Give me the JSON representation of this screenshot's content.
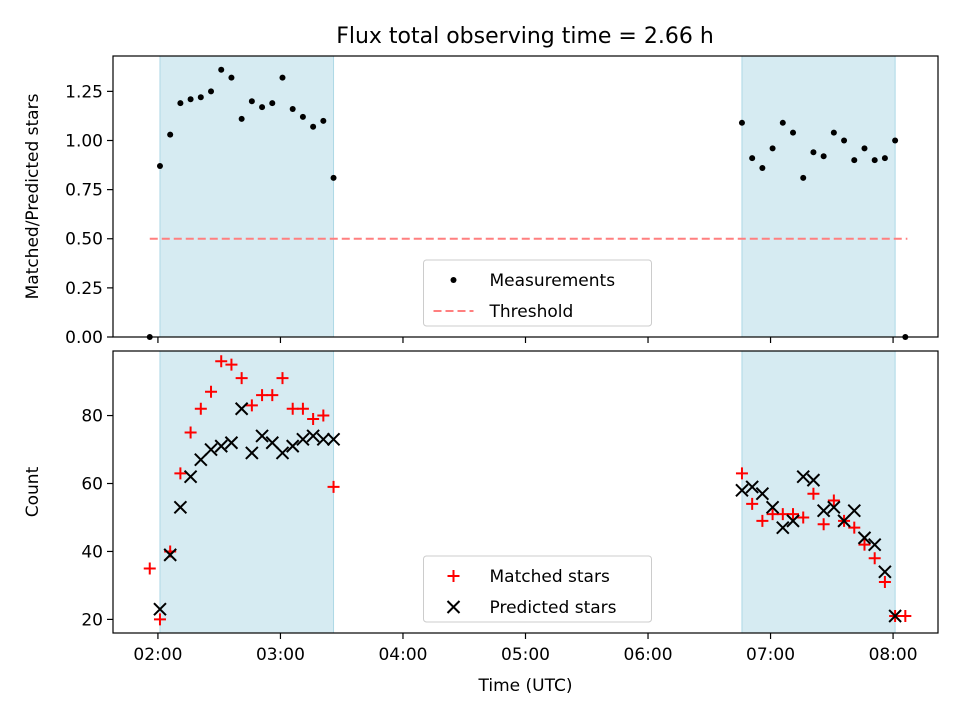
{
  "title": "Flux total observing time = 2.66 h",
  "colors": {
    "shade": "#add8e6",
    "measurement": "#000000",
    "threshold": "#ff7f7f",
    "matched": "#ff0000",
    "predicted": "#000000"
  },
  "chart_data": [
    {
      "type": "scatter",
      "ylabel": "Matched/Predicted stars",
      "xlim": [
        "01:38",
        "08:22"
      ],
      "ylim": [
        0,
        1.43
      ],
      "y_ticks": [
        "0.00",
        "0.25",
        "0.50",
        "0.75",
        "1.00",
        "1.25"
      ],
      "shaded_intervals": [
        [
          "02:01",
          "03:26"
        ],
        [
          "06:46",
          "08:01"
        ]
      ],
      "legend": {
        "location": "lower center",
        "entries": [
          "Measurements",
          "Threshold"
        ]
      },
      "threshold": {
        "name": "Threshold",
        "value": 0.5,
        "x_range": [
          "01:56",
          "08:07"
        ]
      },
      "series": [
        {
          "name": "Measurements",
          "marker": "dot",
          "points": [
            [
              "01:56",
              0.0
            ],
            [
              "02:01",
              0.87
            ],
            [
              "02:06",
              1.03
            ],
            [
              "02:11",
              1.19
            ],
            [
              "02:16",
              1.21
            ],
            [
              "02:21",
              1.22
            ],
            [
              "02:26",
              1.25
            ],
            [
              "02:31",
              1.36
            ],
            [
              "02:36",
              1.32
            ],
            [
              "02:41",
              1.11
            ],
            [
              "02:46",
              1.2
            ],
            [
              "02:51",
              1.17
            ],
            [
              "02:56",
              1.19
            ],
            [
              "03:01",
              1.32
            ],
            [
              "03:06",
              1.16
            ],
            [
              "03:11",
              1.12
            ],
            [
              "03:16",
              1.07
            ],
            [
              "03:21",
              1.1
            ],
            [
              "03:26",
              0.81
            ],
            [
              "06:46",
              1.09
            ],
            [
              "06:51",
              0.91
            ],
            [
              "06:56",
              0.86
            ],
            [
              "07:01",
              0.96
            ],
            [
              "07:06",
              1.09
            ],
            [
              "07:11",
              1.04
            ],
            [
              "07:16",
              0.81
            ],
            [
              "07:21",
              0.94
            ],
            [
              "07:26",
              0.92
            ],
            [
              "07:31",
              1.04
            ],
            [
              "07:36",
              1.0
            ],
            [
              "07:41",
              0.9
            ],
            [
              "07:46",
              0.96
            ],
            [
              "07:51",
              0.9
            ],
            [
              "07:56",
              0.91
            ],
            [
              "08:01",
              1.0
            ],
            [
              "08:06",
              0.0
            ]
          ]
        }
      ]
    },
    {
      "type": "scatter",
      "ylabel": "Count",
      "xlabel": "Time (UTC)",
      "xlim": [
        "01:38",
        "08:22"
      ],
      "ylim": [
        16,
        99
      ],
      "x_ticks": [
        "02:00",
        "03:00",
        "04:00",
        "05:00",
        "06:00",
        "07:00",
        "08:00"
      ],
      "y_ticks": [
        "20",
        "40",
        "60",
        "80"
      ],
      "shaded_intervals": [
        [
          "02:01",
          "03:26"
        ],
        [
          "06:46",
          "08:01"
        ]
      ],
      "legend": {
        "location": "lower center",
        "entries": [
          "Matched stars",
          "Predicted stars"
        ]
      },
      "series": [
        {
          "name": "Matched stars",
          "marker": "plus",
          "points": [
            [
              "01:56",
              35
            ],
            [
              "02:01",
              20
            ],
            [
              "02:06",
              40
            ],
            [
              "02:11",
              63
            ],
            [
              "02:16",
              75
            ],
            [
              "02:21",
              82
            ],
            [
              "02:26",
              87
            ],
            [
              "02:31",
              96
            ],
            [
              "02:36",
              95
            ],
            [
              "02:41",
              91
            ],
            [
              "02:46",
              83
            ],
            [
              "02:51",
              86
            ],
            [
              "02:56",
              86
            ],
            [
              "03:01",
              91
            ],
            [
              "03:06",
              82
            ],
            [
              "03:11",
              82
            ],
            [
              "03:16",
              79
            ],
            [
              "03:21",
              80
            ],
            [
              "03:26",
              59
            ],
            [
              "06:46",
              63
            ],
            [
              "06:51",
              54
            ],
            [
              "06:56",
              49
            ],
            [
              "07:01",
              51
            ],
            [
              "07:06",
              51
            ],
            [
              "07:11",
              51
            ],
            [
              "07:16",
              50
            ],
            [
              "07:21",
              57
            ],
            [
              "07:26",
              48
            ],
            [
              "07:31",
              55
            ],
            [
              "07:36",
              49
            ],
            [
              "07:41",
              47
            ],
            [
              "07:46",
              42
            ],
            [
              "07:51",
              38
            ],
            [
              "07:56",
              31
            ],
            [
              "08:01",
              21
            ],
            [
              "08:06",
              21
            ]
          ]
        },
        {
          "name": "Predicted stars",
          "marker": "x",
          "points": [
            [
              "02:01",
              23
            ],
            [
              "02:06",
              39
            ],
            [
              "02:11",
              53
            ],
            [
              "02:16",
              62
            ],
            [
              "02:21",
              67
            ],
            [
              "02:26",
              70
            ],
            [
              "02:31",
              71
            ],
            [
              "02:36",
              72
            ],
            [
              "02:41",
              82
            ],
            [
              "02:46",
              69
            ],
            [
              "02:51",
              74
            ],
            [
              "02:56",
              72
            ],
            [
              "03:01",
              69
            ],
            [
              "03:06",
              71
            ],
            [
              "03:11",
              73
            ],
            [
              "03:16",
              74
            ],
            [
              "03:21",
              73
            ],
            [
              "03:26",
              73
            ],
            [
              "06:46",
              58
            ],
            [
              "06:51",
              59
            ],
            [
              "06:56",
              57
            ],
            [
              "07:01",
              53
            ],
            [
              "07:06",
              47
            ],
            [
              "07:11",
              49
            ],
            [
              "07:16",
              62
            ],
            [
              "07:21",
              61
            ],
            [
              "07:26",
              52
            ],
            [
              "07:31",
              53
            ],
            [
              "07:36",
              49
            ],
            [
              "07:41",
              52
            ],
            [
              "07:46",
              44
            ],
            [
              "07:51",
              42
            ],
            [
              "07:56",
              34
            ],
            [
              "08:01",
              21
            ]
          ]
        }
      ]
    }
  ]
}
